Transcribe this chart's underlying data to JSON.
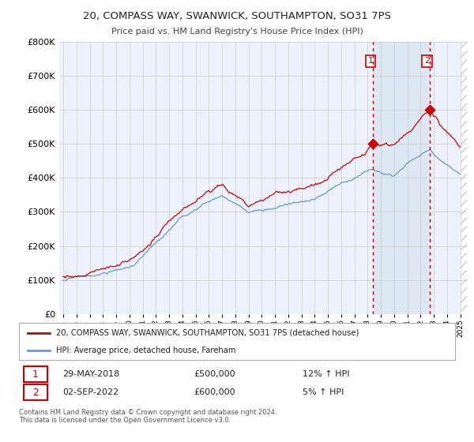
{
  "title": "20, COMPASS WAY, SWANWICK, SOUTHAMPTON, SO31 7PS",
  "subtitle": "Price paid vs. HM Land Registry's House Price Index (HPI)",
  "ylabel_ticks": [
    "£0",
    "£100K",
    "£200K",
    "£300K",
    "£400K",
    "£500K",
    "£600K",
    "£700K",
    "£800K"
  ],
  "ytick_values": [
    0,
    100000,
    200000,
    300000,
    400000,
    500000,
    600000,
    700000,
    800000
  ],
  "ylim": [
    0,
    800000
  ],
  "background_color": "#ffffff",
  "plot_bg_color": "#eef2ff",
  "hpi_color": "#6699cc",
  "price_color": "#cc0000",
  "vline_color": "#cc0000",
  "shade_color": "#dde8f5",
  "marker1_year": 2018.41,
  "marker2_year": 2022.67,
  "marker1_price": 500000,
  "marker2_price": 600000,
  "legend_label1": "20, COMPASS WAY, SWANWICK, SOUTHAMPTON, SO31 7PS (detached house)",
  "legend_label2": "HPI: Average price, detached house, Fareham",
  "annotation1": [
    "1",
    "29-MAY-2018",
    "£500,000",
    "12% ↑ HPI"
  ],
  "annotation2": [
    "2",
    "02-SEP-2022",
    "£600,000",
    "5% ↑ HPI"
  ],
  "footer": "Contains HM Land Registry data © Crown copyright and database right 2024.\nThis data is licensed under the Open Government Licence v3.0.",
  "xtick_years": [
    1995,
    1996,
    1997,
    1998,
    1999,
    2000,
    2001,
    2002,
    2003,
    2004,
    2005,
    2006,
    2007,
    2008,
    2009,
    2010,
    2011,
    2012,
    2013,
    2014,
    2015,
    2016,
    2017,
    2018,
    2019,
    2020,
    2021,
    2022,
    2023,
    2024,
    2025
  ],
  "xlim_left": 1994.7,
  "xlim_right": 2025.5
}
